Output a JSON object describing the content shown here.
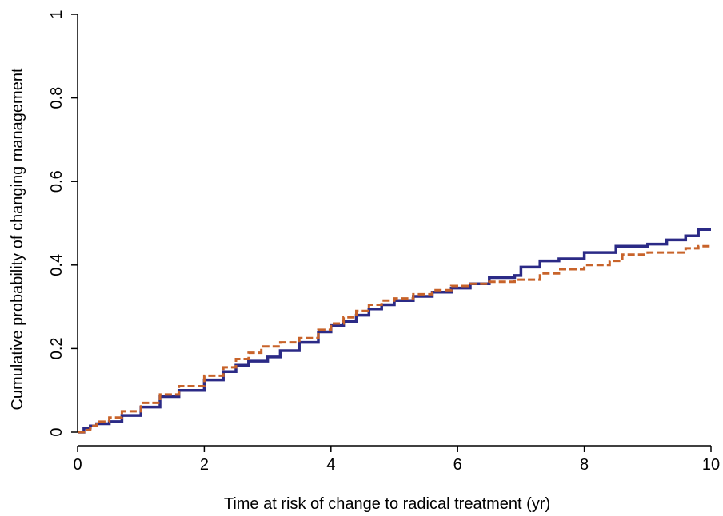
{
  "chart_data": {
    "type": "line",
    "xlabel": "Time at risk of change to radical treatment (yr)",
    "ylabel": "Cumulative probability of changing management",
    "xlim": [
      0,
      10
    ],
    "ylim": [
      0,
      1
    ],
    "x_ticks": [
      0,
      2,
      4,
      6,
      8,
      10
    ],
    "x_tick_labels": [
      "0",
      "2",
      "4",
      "6",
      "8",
      "10"
    ],
    "y_ticks": [
      0,
      0.2,
      0.4,
      0.6,
      0.8,
      1
    ],
    "y_tick_labels": [
      "0",
      "0.2",
      "0.4",
      "0.6",
      "0.8",
      "1"
    ],
    "grid": false,
    "legend": "none",
    "series": [
      {
        "color": "#2b2a86",
        "line_style": "solid",
        "x": [
          0,
          0.1,
          0.2,
          0.3,
          0.5,
          0.7,
          1.0,
          1.3,
          1.6,
          2.0,
          2.3,
          2.5,
          2.7,
          3.0,
          3.2,
          3.5,
          3.8,
          4.0,
          4.2,
          4.4,
          4.6,
          4.8,
          5.0,
          5.3,
          5.6,
          5.9,
          6.2,
          6.5,
          6.9,
          7.0,
          7.3,
          7.6,
          8.0,
          8.5,
          9.0,
          9.3,
          9.6,
          9.8,
          10.0
        ],
        "y": [
          0.0,
          0.01,
          0.015,
          0.02,
          0.025,
          0.04,
          0.06,
          0.085,
          0.1,
          0.125,
          0.145,
          0.16,
          0.17,
          0.18,
          0.195,
          0.215,
          0.24,
          0.255,
          0.265,
          0.28,
          0.295,
          0.305,
          0.315,
          0.325,
          0.335,
          0.345,
          0.355,
          0.37,
          0.375,
          0.395,
          0.41,
          0.415,
          0.43,
          0.445,
          0.45,
          0.46,
          0.47,
          0.485,
          0.485
        ]
      },
      {
        "color": "#c8632a",
        "line_style": "dashed",
        "x": [
          0,
          0.1,
          0.2,
          0.3,
          0.5,
          0.7,
          1.0,
          1.3,
          1.6,
          2.0,
          2.3,
          2.5,
          2.7,
          2.9,
          3.2,
          3.5,
          3.8,
          4.0,
          4.2,
          4.4,
          4.6,
          4.8,
          5.0,
          5.3,
          5.6,
          5.9,
          6.2,
          6.5,
          6.9,
          7.3,
          7.6,
          8.0,
          8.4,
          8.6,
          9.0,
          9.3,
          9.6,
          9.8,
          10.0
        ],
        "y": [
          0.0,
          0.005,
          0.015,
          0.025,
          0.035,
          0.05,
          0.07,
          0.09,
          0.11,
          0.135,
          0.155,
          0.175,
          0.19,
          0.205,
          0.215,
          0.225,
          0.245,
          0.26,
          0.275,
          0.29,
          0.305,
          0.315,
          0.32,
          0.33,
          0.34,
          0.35,
          0.355,
          0.36,
          0.365,
          0.38,
          0.39,
          0.4,
          0.41,
          0.425,
          0.43,
          0.43,
          0.44,
          0.445,
          0.445
        ]
      }
    ]
  }
}
